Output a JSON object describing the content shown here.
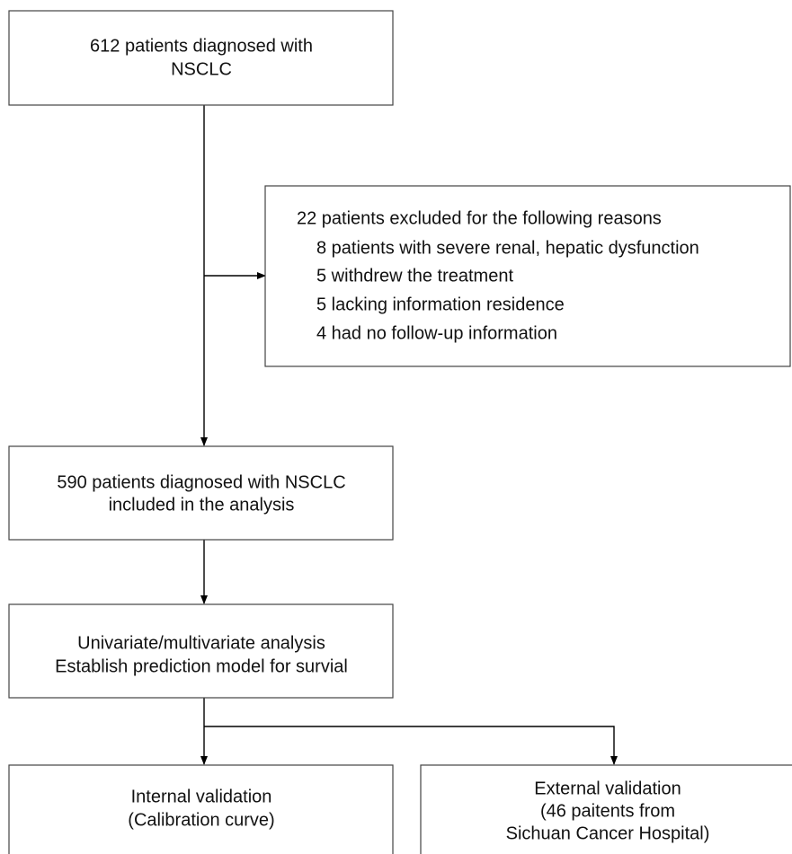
{
  "nodes": [
    {
      "lines": [
        "612 patients diagnosed with",
        "NSCLC"
      ]
    },
    {
      "lines": [
        "22 patients excluded for the following reasons",
        "8 patients with severe renal, hepatic dysfunction",
        "5 withdrew the treatment",
        "5 lacking information residence",
        "4 had no follow-up information"
      ]
    },
    {
      "lines": [
        "590 patients diagnosed with NSCLC",
        "included in the analysis"
      ]
    },
    {
      "lines": [
        "Univariate/multivariate analysis",
        "Establish prediction model for survial"
      ]
    },
    {
      "lines": [
        "Internal validation",
        "(Calibration curve)"
      ]
    },
    {
      "lines": [
        "External validation",
        "(46 paitents from",
        "Sichuan Cancer Hospital)"
      ]
    }
  ]
}
